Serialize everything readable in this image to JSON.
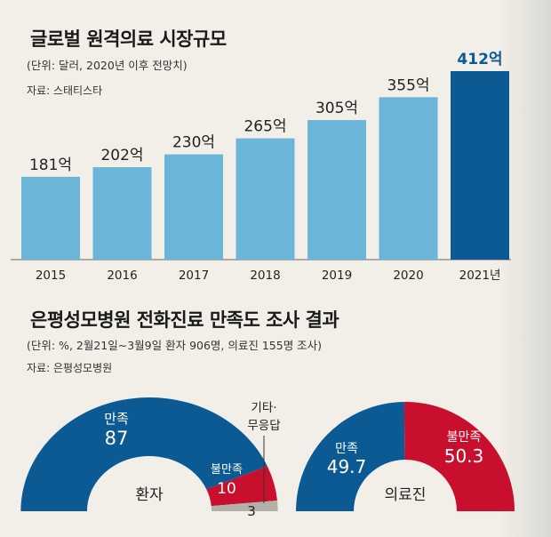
{
  "chart_data": [
    {
      "type": "bar",
      "title": "글로벌 원격의료 시장규모",
      "subtitle": "(단위: 달러, 2020년 이후 전망치)",
      "source": "자료: 스태티스타",
      "categories": [
        "2015",
        "2016",
        "2017",
        "2018",
        "2019",
        "2020",
        "2021년"
      ],
      "values": [
        181,
        202,
        230,
        265,
        305,
        355,
        412
      ],
      "data_labels": [
        "181억",
        "202억",
        "230억",
        "265억",
        "305억",
        "355억",
        "412억"
      ],
      "bar_color": "#6ab5d8",
      "highlight_color": "#0b5a93",
      "highlight_index": 6,
      "ylim": [
        0,
        412
      ]
    },
    {
      "type": "pie",
      "style": "half-donut",
      "title": "은평성모병원 전화진료 만족도 조사 결과",
      "subtitle": "(단위: %, 2월21일~3월9일 환자 906명, 의료진 155명 조사)",
      "source": "자료: 은평성모병원",
      "groups": [
        {
          "name": "환자",
          "slices": [
            {
              "label": "만족",
              "value": 87,
              "color": "#0b5a93"
            },
            {
              "label": "불만족",
              "value": 10,
              "color": "#c8102e"
            },
            {
              "label": "기타·\n무응답",
              "value": 3,
              "color": "#b3b0a8"
            }
          ]
        },
        {
          "name": "의료진",
          "slices": [
            {
              "label": "만족",
              "value": 49.7,
              "color": "#0b5a93"
            },
            {
              "label": "불만족",
              "value": 50.3,
              "color": "#c8102e"
            }
          ]
        }
      ]
    }
  ]
}
